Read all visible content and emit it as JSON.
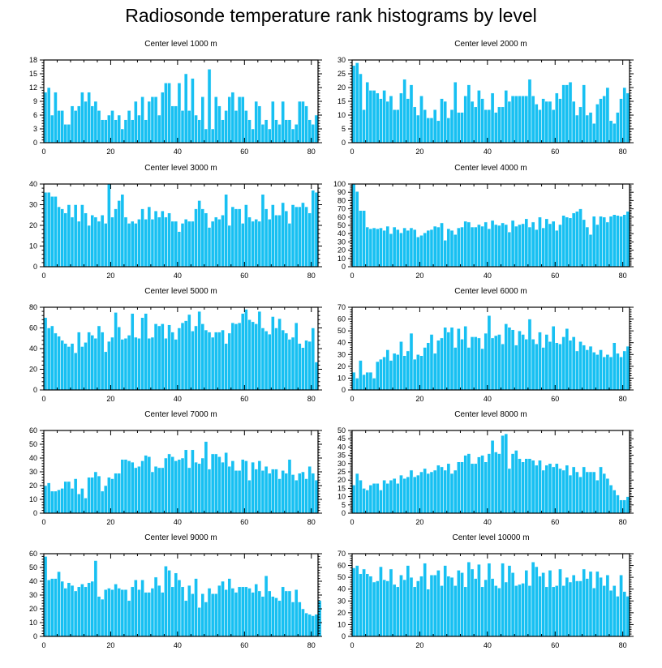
{
  "title": "Radiosonde temperature rank histograms by level",
  "colors": {
    "bar": "#17c0f2",
    "bar_edge": "#ffffff",
    "axis": "#000000"
  },
  "chart_data": [
    {
      "type": "bar",
      "title": "Center level 1000 m",
      "xlabel": "",
      "ylabel": "",
      "xlim": [
        0,
        82
      ],
      "xticks": [
        0,
        20,
        40,
        60,
        80
      ],
      "ylim": [
        0,
        18
      ],
      "yticks": [
        0,
        3,
        6,
        9,
        12,
        15,
        18
      ],
      "x_start": 0,
      "values": [
        11,
        12,
        6,
        11,
        7,
        7,
        4,
        4,
        8,
        7,
        8,
        11,
        9,
        11,
        8,
        9,
        7,
        5,
        5,
        6,
        7,
        5,
        6,
        3,
        5,
        7,
        5,
        9,
        6,
        10,
        5,
        9,
        10,
        10,
        6,
        11,
        13,
        13,
        8,
        8,
        13,
        7,
        15,
        7,
        14,
        6,
        5,
        10,
        3,
        16,
        3,
        10,
        8,
        5,
        7,
        10,
        11,
        7,
        10,
        10,
        7,
        5,
        3,
        9,
        8,
        4,
        5,
        3,
        9,
        5,
        4,
        9,
        5,
        5,
        3,
        4,
        9,
        9,
        8,
        5,
        4,
        6
      ]
    },
    {
      "type": "bar",
      "title": "Center level 2000 m",
      "xlabel": "",
      "ylabel": "",
      "xlim": [
        0,
        82
      ],
      "xticks": [
        0,
        20,
        40,
        60,
        80
      ],
      "ylim": [
        0,
        30
      ],
      "yticks": [
        0,
        5,
        10,
        15,
        20,
        25,
        30
      ],
      "x_start": 0,
      "values": [
        28,
        29,
        25,
        12,
        22,
        19,
        19,
        18,
        16,
        19,
        15,
        17,
        12,
        12,
        18,
        23,
        16,
        21,
        13,
        10,
        17,
        12,
        9,
        9,
        12,
        8,
        16,
        15,
        9,
        12,
        22,
        11,
        11,
        17,
        21,
        15,
        13,
        19,
        16,
        12,
        12,
        18,
        11,
        13,
        13,
        19,
        15,
        17,
        17,
        17,
        17,
        17,
        23,
        17,
        14,
        12,
        16,
        15,
        15,
        12,
        18,
        16,
        21,
        21,
        22,
        15,
        10,
        13,
        21,
        10,
        11,
        7,
        14,
        16,
        17,
        20,
        8,
        7,
        11,
        16,
        20,
        18
      ]
    },
    {
      "type": "bar",
      "title": "Center level 3000 m",
      "xlabel": "",
      "ylabel": "",
      "xlim": [
        0,
        82
      ],
      "xticks": [
        0,
        20,
        40,
        60,
        80
      ],
      "ylim": [
        0,
        40
      ],
      "yticks": [
        0,
        10,
        20,
        30,
        40
      ],
      "x_start": 0,
      "values": [
        36,
        36,
        34,
        34,
        29,
        28,
        26,
        30,
        24,
        30,
        22,
        30,
        26,
        20,
        25,
        24,
        22,
        25,
        21,
        40,
        24,
        28,
        32,
        35,
        24,
        21,
        22,
        21,
        23,
        28,
        23,
        29,
        23,
        27,
        24,
        27,
        24,
        26,
        22,
        22,
        17,
        21,
        23,
        22,
        22,
        28,
        32,
        28,
        26,
        19,
        22,
        24,
        23,
        25,
        35,
        20,
        29,
        28,
        28,
        21,
        30,
        24,
        22,
        23,
        22,
        35,
        28,
        23,
        30,
        25,
        25,
        31,
        27,
        21,
        30,
        29,
        29,
        31,
        29,
        26,
        37,
        36
      ]
    },
    {
      "type": "bar",
      "title": "Center level 4000 m",
      "xlabel": "",
      "ylabel": "",
      "xlim": [
        0,
        82
      ],
      "xticks": [
        0,
        20,
        40,
        60,
        80
      ],
      "ylim": [
        0,
        100
      ],
      "yticks": [
        0,
        10,
        20,
        30,
        40,
        50,
        60,
        70,
        80,
        90,
        100
      ],
      "x_start": 0,
      "values": [
        100,
        91,
        68,
        68,
        48,
        46,
        47,
        46,
        47,
        44,
        49,
        40,
        48,
        45,
        41,
        47,
        44,
        47,
        45,
        36,
        38,
        41,
        44,
        45,
        49,
        48,
        53,
        32,
        46,
        44,
        39,
        47,
        48,
        55,
        54,
        48,
        48,
        51,
        49,
        54,
        46,
        56,
        51,
        50,
        53,
        51,
        42,
        56,
        49,
        51,
        52,
        58,
        48,
        54,
        45,
        60,
        47,
        58,
        52,
        55,
        44,
        51,
        62,
        60,
        59,
        65,
        67,
        70,
        57,
        48,
        39,
        61,
        51,
        61,
        60,
        54,
        61,
        63,
        62,
        61,
        63,
        67
      ]
    },
    {
      "type": "bar",
      "title": "Center level 5000 m",
      "xlabel": "",
      "ylabel": "",
      "xlim": [
        0,
        82
      ],
      "xticks": [
        0,
        20,
        40,
        60,
        80
      ],
      "ylim": [
        0,
        80
      ],
      "yticks": [
        0,
        20,
        40,
        60,
        80
      ],
      "x_start": 0,
      "values": [
        70,
        60,
        62,
        55,
        52,
        48,
        45,
        42,
        45,
        36,
        56,
        42,
        46,
        56,
        53,
        50,
        62,
        56,
        37,
        47,
        51,
        75,
        61,
        49,
        50,
        53,
        74,
        51,
        50,
        70,
        74,
        50,
        51,
        64,
        62,
        64,
        50,
        63,
        56,
        49,
        60,
        65,
        67,
        73,
        57,
        62,
        76,
        64,
        58,
        56,
        51,
        56,
        56,
        58,
        45,
        55,
        65,
        64,
        65,
        74,
        78,
        68,
        66,
        64,
        76,
        60,
        57,
        54,
        71,
        60,
        69,
        58,
        55,
        49,
        51,
        65,
        45,
        41,
        48,
        47,
        60,
        27
      ]
    },
    {
      "type": "bar",
      "title": "Center level 6000 m",
      "xlabel": "",
      "ylabel": "",
      "xlim": [
        0,
        82
      ],
      "xticks": [
        0,
        20,
        40,
        60,
        80
      ],
      "ylim": [
        0,
        70
      ],
      "yticks": [
        0,
        10,
        20,
        30,
        40,
        50,
        60,
        70
      ],
      "x_start": 0,
      "values": [
        15,
        10,
        25,
        13,
        15,
        15,
        10,
        24,
        26,
        28,
        34,
        25,
        31,
        30,
        41,
        29,
        33,
        48,
        26,
        30,
        29,
        36,
        40,
        47,
        31,
        42,
        44,
        53,
        49,
        53,
        36,
        52,
        43,
        54,
        36,
        45,
        45,
        44,
        35,
        48,
        63,
        44,
        46,
        47,
        39,
        56,
        53,
        51,
        38,
        50,
        47,
        43,
        60,
        43,
        39,
        49,
        36,
        47,
        41,
        54,
        40,
        39,
        45,
        52,
        42,
        45,
        33,
        41,
        38,
        34,
        37,
        32,
        30,
        34,
        28,
        30,
        28,
        40,
        31,
        28,
        33,
        37
      ]
    },
    {
      "type": "bar",
      "title": "Center level 7000 m",
      "xlabel": "",
      "ylabel": "",
      "xlim": [
        0,
        82
      ],
      "xticks": [
        0,
        20,
        40,
        60,
        80
      ],
      "ylim": [
        0,
        60
      ],
      "yticks": [
        0,
        10,
        20,
        30,
        40,
        50,
        60
      ],
      "x_start": 0,
      "values": [
        20,
        22,
        16,
        16,
        17,
        18,
        23,
        23,
        18,
        25,
        14,
        18,
        11,
        26,
        26,
        30,
        27,
        16,
        20,
        26,
        25,
        29,
        29,
        39,
        39,
        38,
        37,
        33,
        34,
        38,
        42,
        41,
        30,
        34,
        33,
        33,
        40,
        43,
        41,
        38,
        39,
        40,
        46,
        33,
        46,
        37,
        36,
        40,
        52,
        32,
        43,
        43,
        41,
        37,
        44,
        34,
        38,
        31,
        31,
        39,
        38,
        24,
        37,
        32,
        38,
        31,
        34,
        29,
        32,
        32,
        25,
        31,
        29,
        39,
        28,
        24,
        29,
        30,
        25,
        34,
        29,
        24
      ]
    },
    {
      "type": "bar",
      "title": "Center level 8000 m",
      "xlabel": "",
      "ylabel": "",
      "xlim": [
        0,
        82
      ],
      "xticks": [
        0,
        20,
        40,
        60,
        80
      ],
      "ylim": [
        0,
        50
      ],
      "yticks": [
        0,
        5,
        10,
        15,
        20,
        25,
        30,
        35,
        40,
        45,
        50
      ],
      "x_start": 0,
      "values": [
        17,
        24,
        20,
        15,
        14,
        17,
        18,
        18,
        14,
        20,
        18,
        20,
        21,
        18,
        23,
        21,
        22,
        26,
        22,
        23,
        25,
        27,
        24,
        25,
        26,
        29,
        28,
        26,
        30,
        24,
        26,
        31,
        31,
        35,
        36,
        30,
        30,
        34,
        35,
        31,
        36,
        44,
        37,
        36,
        47,
        48,
        27,
        36,
        38,
        33,
        31,
        33,
        33,
        32,
        29,
        32,
        26,
        29,
        30,
        28,
        30,
        27,
        26,
        29,
        23,
        28,
        25,
        22,
        28,
        25,
        25,
        25,
        20,
        28,
        24,
        21,
        17,
        14,
        11,
        8,
        8,
        10
      ]
    },
    {
      "type": "bar",
      "title": "Center level 9000 m",
      "xlabel": "",
      "ylabel": "",
      "xlim": [
        0,
        82
      ],
      "xticks": [
        0,
        20,
        40,
        60,
        80
      ],
      "ylim": [
        0,
        60
      ],
      "yticks": [
        0,
        10,
        20,
        30,
        40,
        50,
        60
      ],
      "x_start": 0,
      "values": [
        58,
        41,
        42,
        42,
        47,
        40,
        35,
        39,
        37,
        33,
        36,
        38,
        36,
        39,
        40,
        55,
        29,
        27,
        34,
        35,
        34,
        38,
        35,
        34,
        34,
        26,
        36,
        41,
        34,
        41,
        32,
        32,
        35,
        43,
        37,
        32,
        51,
        48,
        36,
        46,
        41,
        36,
        26,
        37,
        31,
        42,
        21,
        31,
        25,
        35,
        31,
        31,
        37,
        40,
        34,
        42,
        35,
        32,
        36,
        36,
        36,
        35,
        32,
        38,
        33,
        29,
        44,
        33,
        29,
        28,
        26,
        36,
        33,
        33,
        25,
        34,
        25,
        20,
        17,
        16,
        15,
        16,
        26
      ]
    },
    {
      "type": "bar",
      "title": "Center level 10000 m",
      "xlabel": "",
      "ylabel": "",
      "xlim": [
        0,
        82
      ],
      "xticks": [
        0,
        20,
        40,
        60,
        80
      ],
      "ylim": [
        0,
        70
      ],
      "yticks": [
        0,
        10,
        20,
        30,
        40,
        50,
        60,
        70
      ],
      "x_start": 0,
      "values": [
        58,
        60,
        53,
        57,
        53,
        51,
        46,
        47,
        59,
        48,
        47,
        57,
        44,
        42,
        52,
        48,
        60,
        50,
        42,
        47,
        51,
        62,
        40,
        52,
        52,
        56,
        43,
        60,
        51,
        50,
        43,
        56,
        54,
        42,
        63,
        57,
        49,
        61,
        42,
        48,
        62,
        49,
        43,
        41,
        62,
        46,
        60,
        54,
        43,
        44,
        45,
        56,
        43,
        63,
        59,
        51,
        54,
        42,
        56,
        42,
        43,
        57,
        43,
        50,
        46,
        52,
        47,
        47,
        57,
        49,
        55,
        41,
        55,
        50,
        43,
        52,
        39,
        43,
        34,
        52,
        38,
        34
      ]
    }
  ]
}
